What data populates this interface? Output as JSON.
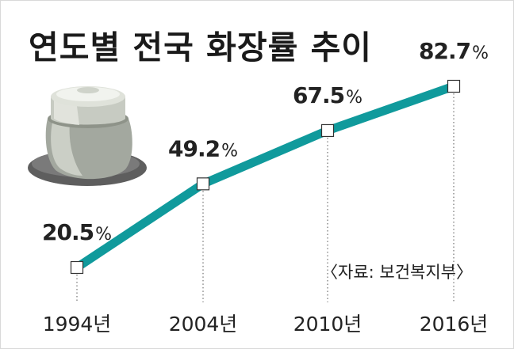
{
  "title": "연도별 전국 화장률 추이",
  "source": "〈자료: 보건복지부〉",
  "colors": {
    "line": "#109a9c",
    "marker_fill": "#ffffff",
    "marker_stroke": "#333333",
    "text": "#222222"
  },
  "icon": "ceramic-urn-icon",
  "chart_data": {
    "type": "line",
    "title": "연도별 전국 화장률 추이",
    "x": [
      "1994년",
      "2004년",
      "2010년",
      "2016년"
    ],
    "series": [
      {
        "values": [
          20.5,
          49.2,
          67.5,
          82.7
        ]
      }
    ],
    "data_labels": [
      "20.5%",
      "49.2%",
      "67.5%",
      "82.7%"
    ],
    "y_unit": "%",
    "grid": false,
    "legend": "none"
  }
}
